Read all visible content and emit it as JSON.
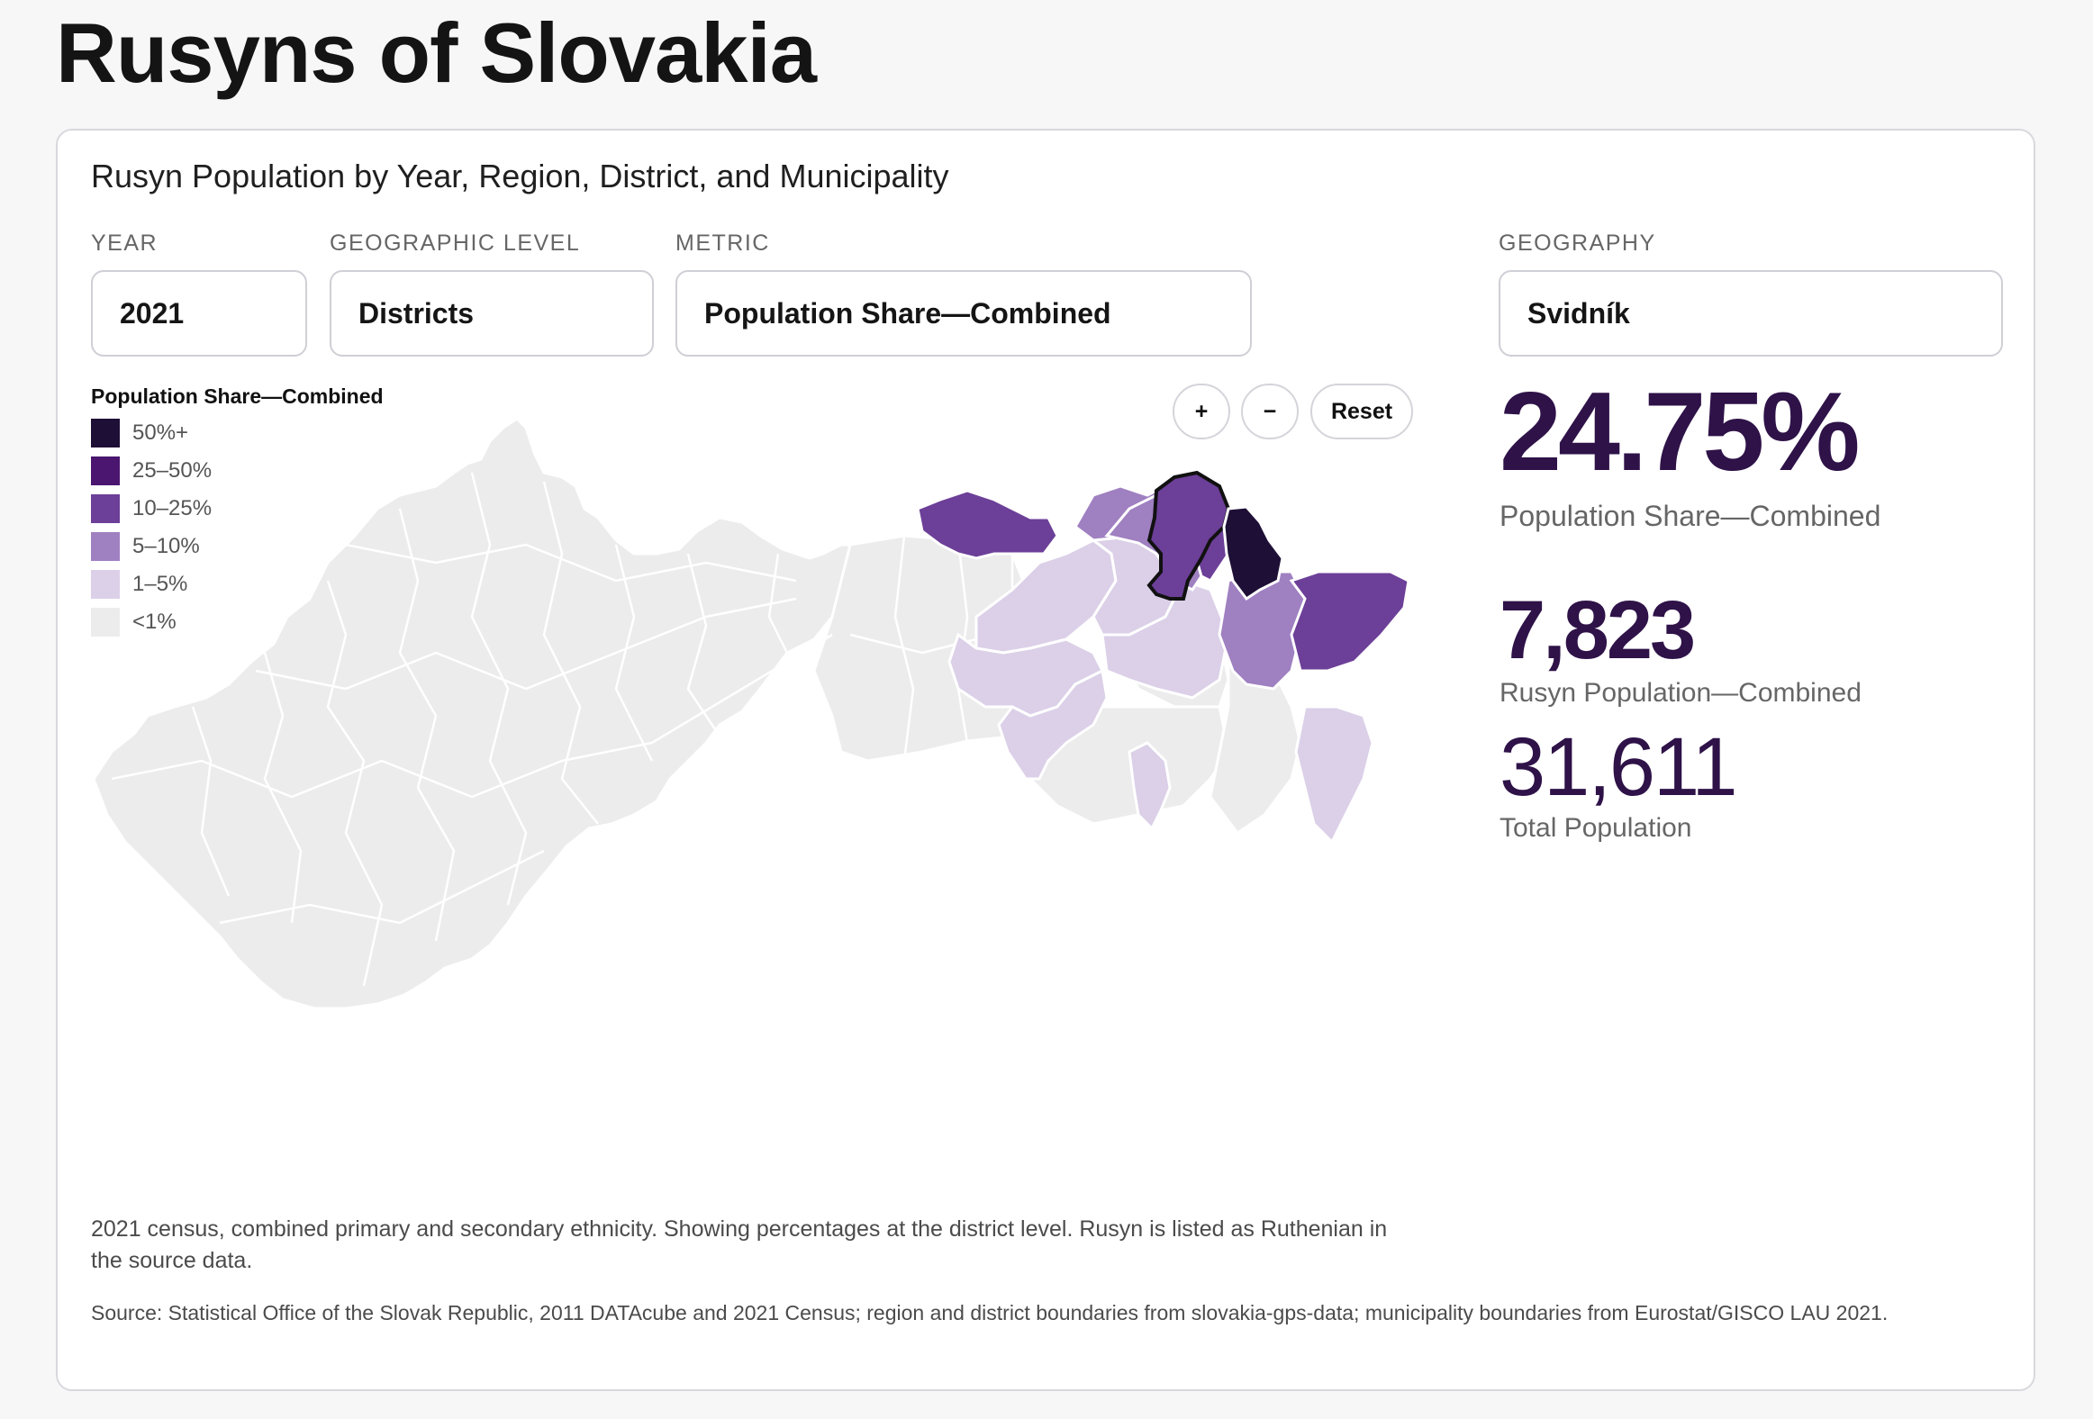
{
  "page": {
    "title": "Rusyns of Slovakia"
  },
  "card": {
    "title": "Rusyn Population by Year, Region, District, and Municipality"
  },
  "controls": {
    "year": {
      "label": "YEAR",
      "value": "2021"
    },
    "level": {
      "label": "GEOGRAPHIC LEVEL",
      "value": "Districts"
    },
    "metric": {
      "label": "METRIC",
      "value": "Population Share—Combined"
    },
    "geography": {
      "label": "GEOGRAPHY",
      "value": "Svidník"
    }
  },
  "legend": {
    "title": "Population Share—Combined",
    "items": [
      {
        "label": "50%+",
        "color": "#1e0f36"
      },
      {
        "label": "25–50%",
        "color": "#4a1670"
      },
      {
        "label": "10–25%",
        "color": "#6c3f98"
      },
      {
        "label": "5–10%",
        "color": "#9f80c1"
      },
      {
        "label": "1–5%",
        "color": "#dbd0e8"
      },
      {
        "label": "<1%",
        "color": "#ececec"
      }
    ]
  },
  "zoom": {
    "in": "+",
    "out": "−",
    "reset": "Reset"
  },
  "stats": {
    "share_value": "24.75%",
    "share_label": "Population Share—Combined",
    "rusyn_value": "7,823",
    "rusyn_label": "Rusyn Population—Combined",
    "total_value": "31,611",
    "total_label": "Total Population"
  },
  "map": {
    "selected_district": "Svidník",
    "colors": {
      "base": "#ececec",
      "border": "#ffffff",
      "selected_outline": "#111111"
    }
  },
  "footer": {
    "note": "2021 census, combined primary and secondary ethnicity. Showing percentages at the district level. Rusyn is listed as Ruthenian in the source data.",
    "source": "Source: Statistical Office of the Slovak Republic, 2011 DATAcube and 2021 Census; region and district boundaries from slovakia-gps-data; municipality boundaries from Eurostat/GISCO LAU 2021."
  }
}
